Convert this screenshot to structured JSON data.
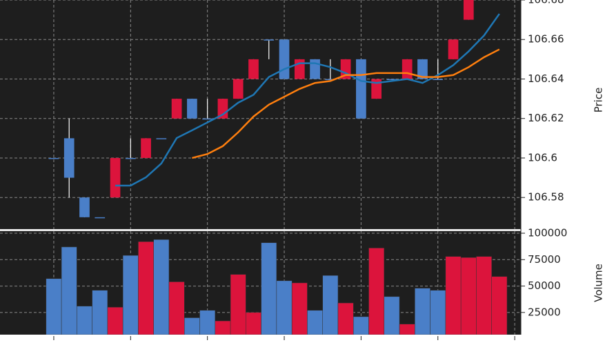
{
  "chart_data": {
    "type": "candlestick",
    "up_color": "#dc143c",
    "down_color": "#4a7fc8",
    "background": "#1e1e1e",
    "grid": true,
    "xlim": [
      -3.5,
      30.4
    ],
    "xticks": [
      0,
      5,
      10,
      15,
      20,
      25,
      30
    ],
    "ylabel": "Price",
    "ylim": [
      106.564,
      106.68
    ],
    "yticks": [
      106.58,
      106.6,
      106.62,
      106.64,
      106.66,
      106.68
    ],
    "open": [
      106.6,
      106.61,
      106.58,
      106.57,
      106.58,
      106.6,
      106.6,
      106.61,
      106.62,
      106.63,
      106.62,
      106.62,
      106.63,
      106.64,
      106.66,
      106.66,
      106.64,
      106.65,
      106.64,
      106.64,
      106.65,
      106.63,
      106.64,
      106.64,
      106.65,
      106.64,
      106.65,
      106.67,
      106.68,
      106.69
    ],
    "high": [
      106.6,
      106.62,
      106.58,
      106.57,
      106.6,
      106.61,
      106.61,
      106.61,
      106.63,
      106.63,
      106.63,
      106.63,
      106.64,
      106.65,
      106.66,
      106.66,
      106.65,
      106.65,
      106.65,
      106.65,
      106.65,
      106.64,
      106.64,
      106.65,
      106.65,
      106.65,
      106.66,
      106.68,
      106.69,
      106.7
    ],
    "low": [
      106.6,
      106.58,
      106.57,
      106.57,
      106.58,
      106.6,
      106.6,
      106.61,
      106.62,
      106.62,
      106.62,
      106.62,
      106.63,
      106.64,
      106.65,
      106.64,
      106.64,
      106.64,
      106.64,
      106.64,
      106.62,
      106.63,
      106.64,
      106.64,
      106.64,
      106.64,
      106.65,
      106.67,
      106.68,
      106.69
    ],
    "close": [
      106.6,
      106.59,
      106.57,
      106.57,
      106.6,
      106.6,
      106.61,
      106.61,
      106.63,
      106.62,
      106.62,
      106.63,
      106.64,
      106.65,
      106.66,
      106.64,
      106.65,
      106.64,
      106.64,
      106.65,
      106.62,
      106.64,
      106.64,
      106.65,
      106.64,
      106.64,
      106.66,
      106.68,
      106.69,
      106.7
    ],
    "ma_lines": [
      {
        "color": "#1f77b4",
        "values": [
          null,
          null,
          null,
          null,
          106.586,
          106.586,
          106.5902,
          106.5972,
          106.6101,
          106.614,
          106.618,
          106.622,
          106.628,
          106.632,
          106.641,
          106.645,
          106.648,
          106.648,
          106.646,
          106.643,
          106.639,
          106.638,
          106.639,
          106.64,
          106.638,
          106.642,
          106.647,
          106.654,
          106.662,
          106.673
        ]
      },
      {
        "color": "#ff7f0e",
        "values": [
          null,
          null,
          null,
          null,
          null,
          null,
          null,
          null,
          null,
          106.6,
          106.602,
          106.606,
          106.613,
          106.621,
          106.627,
          106.631,
          106.635,
          106.638,
          106.639,
          106.642,
          106.642,
          106.643,
          106.643,
          106.643,
          106.641,
          106.641,
          106.642,
          106.646,
          106.651,
          106.655
        ]
      }
    ],
    "volume_label": "Volume",
    "volume": [
      57000,
      87000,
      31000,
      46000,
      30000,
      79000,
      92000,
      94000,
      54000,
      20000,
      27000,
      17000,
      61000,
      25000,
      91000,
      55000,
      53000,
      27000,
      60000,
      34000,
      21000,
      86000,
      40000,
      14000,
      48000,
      46000,
      78000,
      77000,
      78000,
      59000
    ],
    "volume_ylim": [
      4000,
      100000
    ],
    "volume_yticks": [
      25000,
      50000,
      75000,
      100000
    ]
  }
}
